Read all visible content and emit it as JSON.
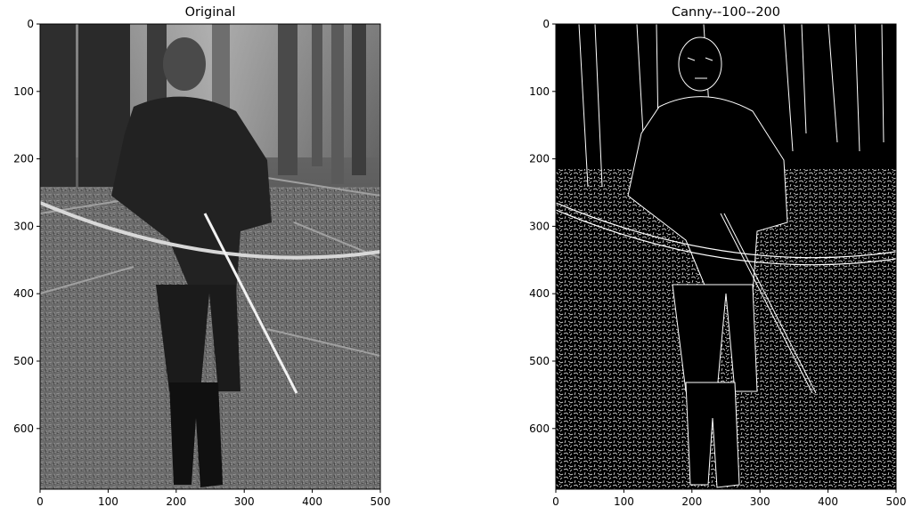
{
  "chart_data": [
    {
      "type": "image",
      "title": "Original",
      "colormap": "gray",
      "image_content": "grayscale photograph of a hooded archer walking through a forest holding a longbow and an arrow",
      "xlim": [
        0,
        500
      ],
      "ylim": [
        690,
        0
      ],
      "xticks": [
        0,
        100,
        200,
        300,
        400,
        500
      ],
      "yticks": [
        0,
        100,
        200,
        300,
        400,
        500,
        600
      ],
      "xlabel": "",
      "ylabel": ""
    },
    {
      "type": "image",
      "title": "Canny--100--200",
      "colormap": "gray",
      "image_content": "Canny edge map: white edge lines on a black background outlining the archer, the bow, tree trunks and dense ground texture",
      "xlim": [
        0,
        500
      ],
      "ylim": [
        690,
        0
      ],
      "xticks": [
        0,
        100,
        200,
        300,
        400,
        500
      ],
      "yticks": [
        0,
        100,
        200,
        300,
        400,
        500,
        600
      ],
      "xlabel": "",
      "ylabel": ""
    }
  ]
}
